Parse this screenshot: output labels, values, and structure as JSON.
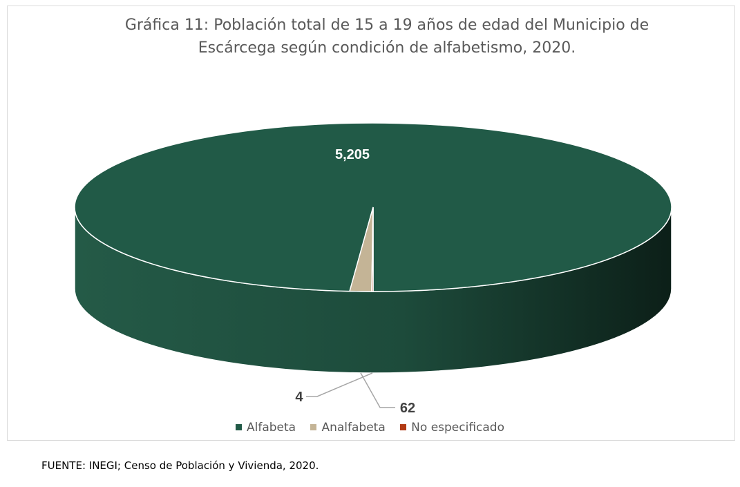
{
  "title_line1": "Gráfica 11: Población total de 15 a 19 años de edad del Municipio de",
  "title_line2": "Escárcega según condición de alfabetismo, 2020.",
  "source": "FUENTE: INEGI; Censo de Población y Vivienda, 2020.",
  "colors": {
    "alfabeta": "#215a47",
    "analfabeta": "#c4b496",
    "no_especificado": "#b23a14"
  },
  "chart_data": {
    "type": "pie",
    "title": "Gráfica 11: Población total de 15 a 19 años de edad del Municipio de Escárcega según condición de alfabetismo, 2020.",
    "categories": [
      "Alfabeta",
      "Analfabeta",
      "No especificado"
    ],
    "values": [
      5205,
      62,
      4
    ],
    "labels": [
      "5,205",
      "62",
      "4"
    ],
    "legend_position": "bottom"
  }
}
